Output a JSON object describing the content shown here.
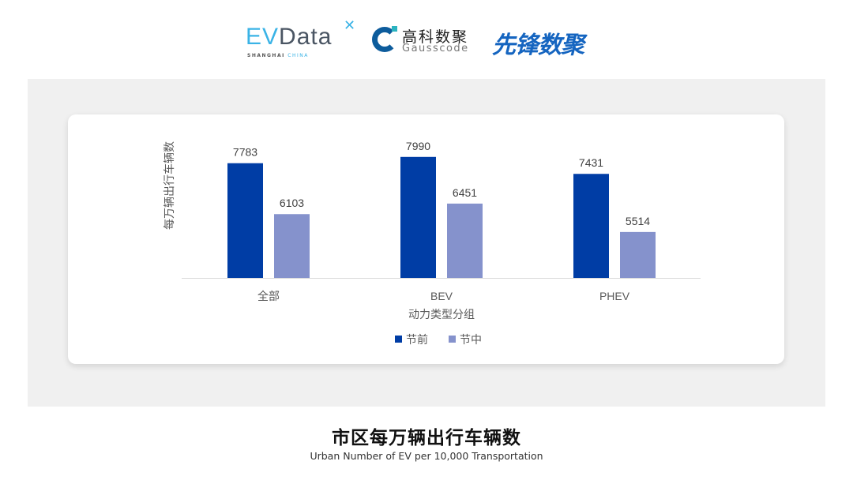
{
  "logos": {
    "evdata": {
      "text_ev": "EV",
      "text_data": "Data",
      "sub_1": "SHANGHAI",
      "sub_2": "CHINA"
    },
    "gausscode": {
      "cn": "高科数聚",
      "en": "Gausscode"
    },
    "xianfeng": {
      "text": "先锋数聚"
    }
  },
  "title": "市区每万辆出行车辆数",
  "subtitle": "Urban Number of EV per 10,000 Transportation",
  "chart_data": {
    "type": "bar",
    "categories": [
      "全部",
      "BEV",
      "PHEV"
    ],
    "series": [
      {
        "name": "节前",
        "values": [
          7783,
          7990,
          7431
        ],
        "color": "#003DA5"
      },
      {
        "name": "节中",
        "values": [
          6103,
          6451,
          5514
        ],
        "color": "#8592CC"
      }
    ],
    "xlabel": "动力类型分组",
    "ylabel": "每万辆出行车辆数",
    "ylim": [
      4000,
      9000
    ],
    "y_axis_visible": false,
    "grid": false,
    "data_labels": true,
    "legend_position": "bottom"
  }
}
